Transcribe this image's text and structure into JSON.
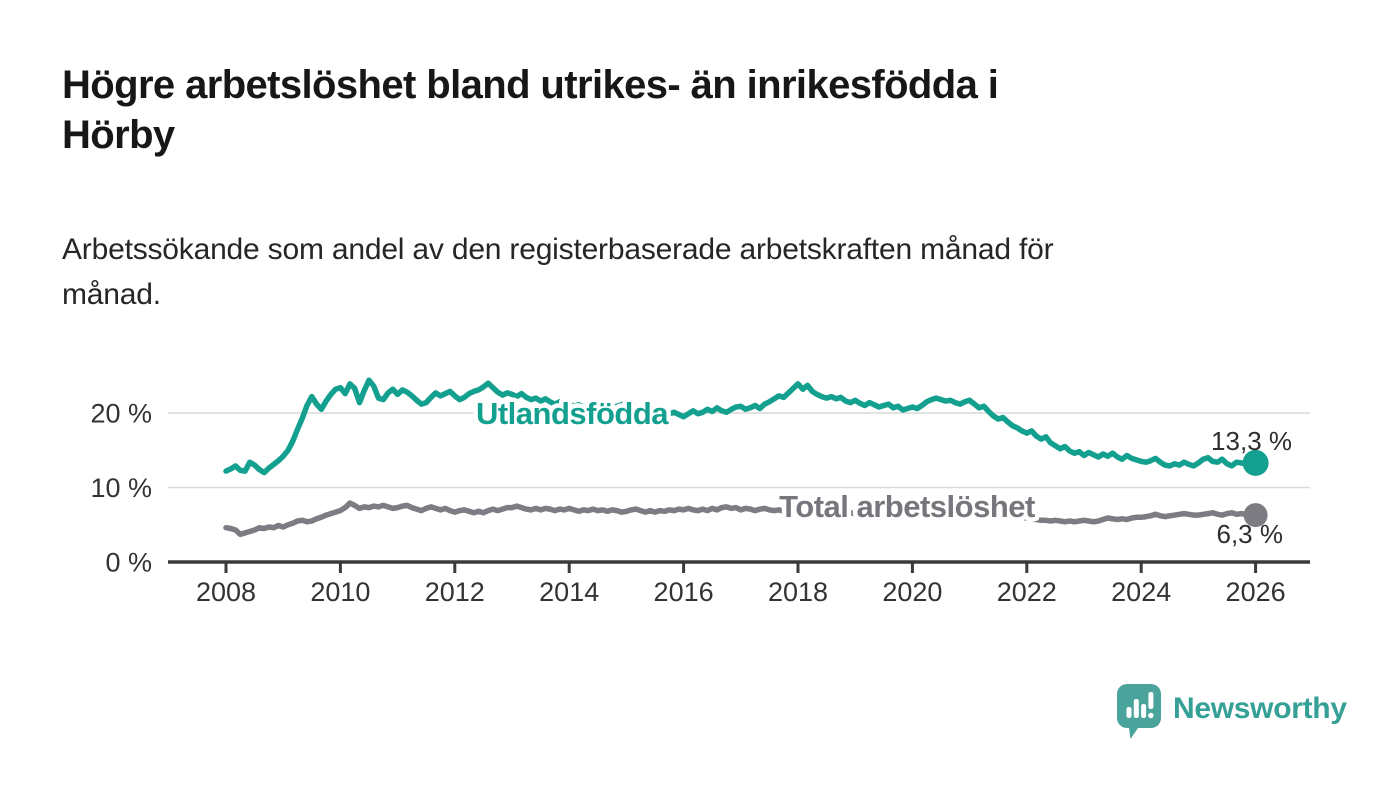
{
  "header": {
    "title_lines": [
      "Högre arbetslöshet bland utrikes- än inrikesfödda i",
      "Hörby"
    ],
    "subtitle_lines": [
      "Arbetssökande som andel av den registerbaserade arbetskraften månad för",
      "månad."
    ]
  },
  "chart_data": {
    "type": "line",
    "title": "Högre arbetslöshet bland utrikes- än inrikesfödda i Hörby",
    "subtitle": "Arbetssökande som andel av den registerbaserade arbetskraften månad för månad.",
    "x_start": "2008-01",
    "frequency": "monthly",
    "x_tick_labels": [
      "2008",
      "2010",
      "2012",
      "2014",
      "2016",
      "2018",
      "2020",
      "2022",
      "2024",
      "2026"
    ],
    "x_tick_years": [
      2008,
      2010,
      2012,
      2014,
      2016,
      2018,
      2020,
      2022,
      2024,
      2026
    ],
    "y_tick_labels": [
      "0 %",
      "10 %",
      "20 %"
    ],
    "y_ticks": [
      0,
      10,
      20
    ],
    "y_range": [
      0,
      25.5
    ],
    "gridlines": [
      10,
      20
    ],
    "grid_color": "#d9d9d9",
    "axis_color": "#3a3a3a",
    "tick_label_color": "#333333",
    "annotation_color": "#2e2e2e",
    "legend_position": "inline-labels",
    "series": [
      {
        "name": "Utlandsfödda",
        "color": "#13a08f",
        "end_label": "13,3 %",
        "end_value": 13.3,
        "values": [
          12.2,
          12.5,
          12.9,
          12.3,
          12.2,
          13.4,
          13.0,
          12.4,
          12.0,
          12.6,
          13.1,
          13.6,
          14.2,
          15.0,
          16.2,
          17.8,
          19.3,
          21.0,
          22.2,
          21.2,
          20.5,
          21.6,
          22.5,
          23.2,
          23.4,
          22.6,
          23.9,
          23.3,
          21.4,
          23.0,
          24.4,
          23.6,
          22.0,
          21.8,
          22.7,
          23.2,
          22.5,
          23.1,
          22.8,
          22.3,
          21.7,
          21.2,
          21.4,
          22.1,
          22.7,
          22.3,
          22.6,
          22.9,
          22.3,
          21.8,
          22.1,
          22.6,
          22.9,
          23.1,
          23.5,
          24.0,
          23.4,
          22.8,
          22.4,
          22.7,
          22.5,
          22.2,
          22.6,
          22.1,
          21.8,
          22.0,
          21.6,
          21.9,
          21.5,
          21.2,
          21.5,
          21.1,
          21.2,
          20.9,
          21.1,
          20.8,
          20.6,
          20.9,
          20.5,
          20.8,
          20.4,
          20.7,
          20.9,
          21.1,
          21.4,
          21.1,
          20.8,
          20.5,
          20.7,
          20.3,
          20.5,
          20.1,
          20.3,
          19.9,
          20.1,
          19.8,
          19.5,
          19.9,
          20.3,
          19.9,
          20.1,
          20.5,
          20.2,
          20.7,
          20.3,
          20.1,
          20.5,
          20.8,
          20.9,
          20.5,
          20.7,
          21.0,
          20.6,
          21.2,
          21.5,
          21.9,
          22.3,
          22.1,
          22.7,
          23.3,
          23.9,
          23.2,
          23.7,
          22.9,
          22.5,
          22.2,
          22.0,
          22.2,
          21.9,
          22.1,
          21.6,
          21.4,
          21.7,
          21.3,
          21.0,
          21.4,
          21.1,
          20.8,
          21.0,
          21.2,
          20.7,
          20.9,
          20.4,
          20.6,
          20.8,
          20.6,
          21.0,
          21.5,
          21.8,
          22.0,
          21.8,
          21.6,
          21.7,
          21.4,
          21.2,
          21.5,
          21.7,
          21.2,
          20.7,
          20.9,
          20.2,
          19.6,
          19.2,
          19.4,
          18.8,
          18.3,
          18.0,
          17.6,
          17.3,
          17.6,
          16.9,
          16.5,
          16.8,
          16.0,
          15.6,
          15.2,
          15.5,
          14.9,
          14.6,
          14.8,
          14.3,
          14.7,
          14.4,
          14.1,
          14.5,
          14.2,
          14.6,
          14.1,
          13.8,
          14.3,
          13.9,
          13.7,
          13.5,
          13.4,
          13.6,
          13.9,
          13.4,
          13.0,
          12.9,
          13.2,
          13.0,
          13.4,
          13.1,
          12.9,
          13.3,
          13.8,
          14.0,
          13.5,
          13.4,
          13.8,
          13.2,
          12.9,
          13.4,
          13.3,
          13.1,
          12.9,
          13.3
        ]
      },
      {
        "name": "Total arbetslöshet",
        "color": "#7c7c82",
        "label_color": "#76767c",
        "end_label": "6,3 %",
        "end_value": 6.3,
        "values": [
          4.6,
          4.5,
          4.3,
          3.7,
          3.9,
          4.1,
          4.3,
          4.6,
          4.5,
          4.7,
          4.6,
          4.9,
          4.7,
          5.0,
          5.2,
          5.5,
          5.6,
          5.4,
          5.5,
          5.8,
          6.0,
          6.3,
          6.5,
          6.7,
          6.9,
          7.3,
          7.9,
          7.6,
          7.2,
          7.4,
          7.3,
          7.5,
          7.4,
          7.6,
          7.4,
          7.2,
          7.3,
          7.5,
          7.6,
          7.3,
          7.1,
          6.9,
          7.2,
          7.4,
          7.2,
          7.0,
          7.2,
          6.9,
          6.7,
          6.9,
          7.0,
          6.8,
          6.6,
          6.8,
          6.6,
          6.9,
          7.1,
          6.9,
          7.1,
          7.3,
          7.3,
          7.5,
          7.3,
          7.1,
          7.0,
          7.2,
          7.0,
          7.2,
          7.1,
          6.9,
          7.1,
          7.0,
          7.2,
          7.0,
          6.8,
          7.0,
          6.9,
          7.1,
          6.9,
          7.0,
          6.8,
          7.0,
          6.9,
          6.7,
          6.8,
          7.0,
          7.1,
          6.9,
          6.7,
          6.9,
          6.7,
          6.9,
          6.8,
          7.0,
          6.9,
          7.1,
          7.0,
          7.2,
          7.0,
          6.9,
          7.1,
          6.9,
          7.2,
          7.0,
          7.3,
          7.4,
          7.2,
          7.3,
          7.0,
          7.2,
          7.1,
          6.9,
          7.1,
          7.2,
          7.0,
          6.9,
          7.0,
          6.8,
          6.9,
          7.0,
          6.9,
          6.8,
          6.9,
          6.7,
          6.6,
          6.7,
          6.6,
          6.7,
          6.5,
          6.6,
          6.5,
          6.6,
          6.5,
          6.6,
          6.5,
          6.4,
          6.5,
          6.6,
          6.5,
          6.6,
          6.5,
          6.6,
          6.7,
          6.8,
          6.9,
          7.0,
          7.4,
          7.8,
          7.7,
          7.6,
          7.5,
          7.4,
          7.3,
          7.2,
          7.2,
          7.1,
          7.2,
          7.1,
          7.0,
          6.9,
          6.8,
          6.6,
          6.5,
          6.4,
          6.3,
          6.2,
          6.1,
          6.0,
          5.9,
          5.8,
          5.7,
          5.6,
          5.6,
          5.5,
          5.6,
          5.5,
          5.4,
          5.5,
          5.4,
          5.5,
          5.6,
          5.5,
          5.4,
          5.5,
          5.7,
          5.9,
          5.8,
          5.7,
          5.8,
          5.7,
          5.9,
          6.0,
          6.0,
          6.1,
          6.2,
          6.4,
          6.2,
          6.1,
          6.2,
          6.3,
          6.4,
          6.5,
          6.4,
          6.3,
          6.3,
          6.4,
          6.5,
          6.6,
          6.4,
          6.3,
          6.5,
          6.6,
          6.4,
          6.5,
          6.4,
          6.5,
          6.3
        ]
      }
    ]
  },
  "footer": {
    "brand": "Newsworthy",
    "logo_color": "#4ba49b",
    "wordmark_color": "#35a096"
  }
}
